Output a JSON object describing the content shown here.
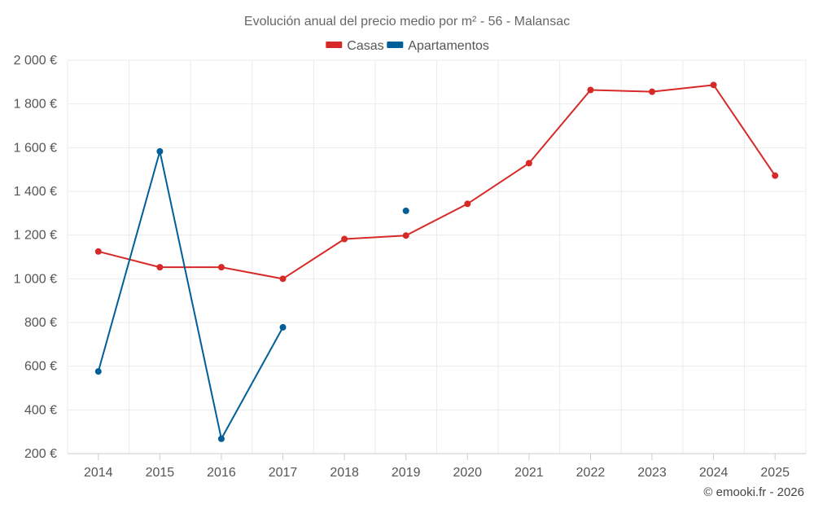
{
  "chart_data": {
    "type": "line",
    "title": "Evolución anual del precio medio por m² - 56 - Malansac",
    "categories": [
      "2014",
      "2015",
      "2016",
      "2017",
      "2018",
      "2019",
      "2020",
      "2021",
      "2022",
      "2023",
      "2024",
      "2025"
    ],
    "series": [
      {
        "name": "Casas",
        "color": "#d62a28",
        "values": [
          1125,
          1053,
          1053,
          1000,
          1182,
          1198,
          1343,
          1529,
          1864,
          1856,
          1887,
          1472
        ]
      },
      {
        "name": "Apartamentos",
        "color": "#005f99",
        "values": [
          576,
          1583,
          268,
          778,
          null,
          1311,
          null,
          null,
          null,
          null,
          null,
          null
        ]
      }
    ],
    "ylim": [
      200,
      2000
    ],
    "yticks": [
      200,
      400,
      600,
      800,
      1000,
      1200,
      1400,
      1600,
      1800,
      2000
    ],
    "ytick_labels": [
      "200 €",
      "400 €",
      "600 €",
      "800 €",
      "1 000 €",
      "1 200 €",
      "1 400 €",
      "1 600 €",
      "1 800 €",
      "2 000 €"
    ],
    "xlabel": "",
    "ylabel": "",
    "grid": true,
    "legend_position": "top-center"
  },
  "credit": "© emooki.fr - 2026"
}
